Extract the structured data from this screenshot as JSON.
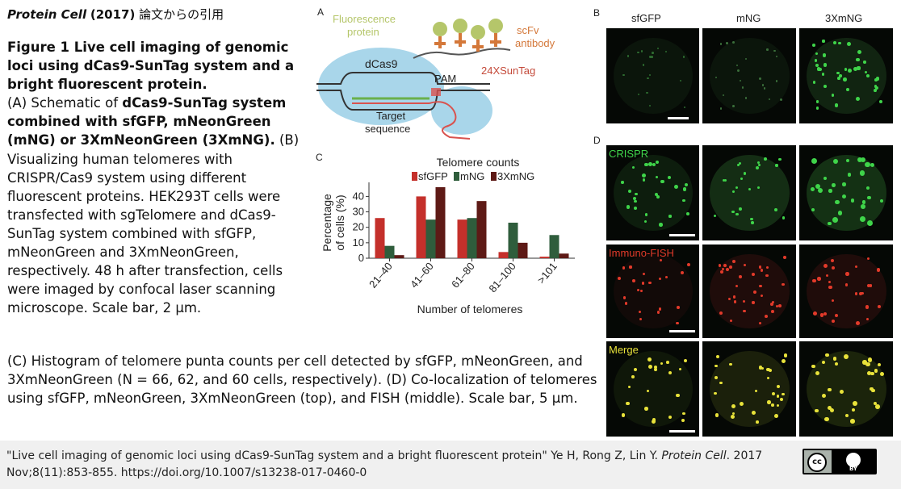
{
  "header": {
    "journal": "Protein Cell",
    "year": "(2017)",
    "note": "論文からの引用"
  },
  "caption": {
    "figure_title": "Figure 1 Live cell imaging of genomic loci using dCas9-SunTag system and a bright fluorescent protein.",
    "a_pre": "(A) Schematic of ",
    "a_bold": "dCas9-SunTag system combined with sfGFP, mNeonGreen (mNG) or 3XmNeonGreen (3XmNG).",
    "b_text": " (B) Visualizing human telomeres with CRISPR/Cas9 system using different fluorescent proteins. HEK293T cells were transfected with sgTelomere and dCas9-SunTag system combined with sfGFP, mNeonGreen and 3XmNeonGreen, respectively. 48 h after transfection, cells were imaged by confocal laser scanning microscope. Scale bar, 2 μm.",
    "c_d_text": "(C) Histogram of telomere punta counts per cell detected by sfGFP, mNeonGreen, and 3XmNeonGreen (N = 66, 62, and 60 cells, respectively). (D) Co-localization of telomeres using sfGFP, mNeonGreen, 3XmNeonGreen (top), and FISH (middle). Scale bar, 5 μm."
  },
  "footer": {
    "citation_pre": "\"Live cell imaging of genomic loci using dCas9-SunTag system and a bright fluorescent protein\" Ye H, Rong Z, Lin Y. ",
    "citation_journal": "Protein Cell",
    "citation_post": ". 2017 Nov;8(11):853-855. https://doi.org/10.1007/s13238-017-0460-0",
    "license_cc": "cc",
    "license_by": "BY"
  },
  "panel_a": {
    "label": "A",
    "fluorescence_protein": [
      "Fluorescence",
      "protein"
    ],
    "scfv_antibody": [
      "scFv",
      "antibody"
    ],
    "dcas9": "dCas9",
    "pam": "PAM",
    "suntag": "24XSunTag",
    "target_sequence": [
      "Target",
      "sequence"
    ],
    "colors": {
      "fluor_text": "#b5c66a",
      "scfv_text": "#d4783a",
      "suntag_text": "#c44a3a",
      "dcas9_fill": "#a9d6ea",
      "grna": "#d9534f"
    }
  },
  "panel_b": {
    "label": "B",
    "columns": [
      "sfGFP",
      "mNG",
      "3XmNG"
    ]
  },
  "panel_d": {
    "label": "D",
    "rows": [
      "CRISPR",
      "Immuno-FISH",
      "Merge"
    ],
    "colors": {
      "crispr": "#3fd44a",
      "fish": "#e23a2a",
      "merge": "#e8e23a"
    }
  },
  "chart_data": {
    "type": "bar",
    "panel_label": "C",
    "title": "Telomere counts",
    "categories": [
      "21–40",
      "41–60",
      "61–80",
      "81–100",
      ">101"
    ],
    "series": [
      {
        "name": "sfGFP",
        "color": "#c4302b",
        "values": [
          26,
          40,
          25,
          4,
          1
        ]
      },
      {
        "name": "mNG",
        "color": "#2f5d3c",
        "values": [
          8,
          25,
          26,
          23,
          15
        ]
      },
      {
        "name": "3XmNG",
        "color": "#5e1a16",
        "values": [
          2,
          46,
          37,
          10,
          3
        ]
      }
    ],
    "xlabel": "Number of telomeres",
    "ylabel": [
      "Percentage",
      "of cells (%)"
    ],
    "yticks": [
      0,
      10,
      20,
      30,
      40
    ],
    "ylim": [
      0,
      47
    ],
    "grid": false,
    "legend_position": "top"
  }
}
